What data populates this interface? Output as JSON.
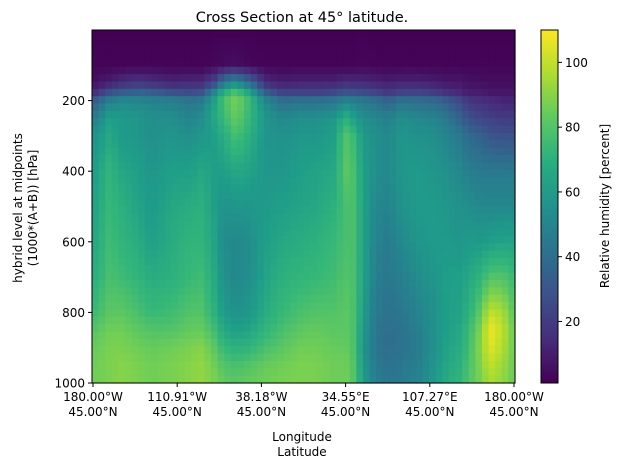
{
  "chart_data": {
    "type": "heatmap",
    "title": "Cross Section at 45° latitude.",
    "xlabel": [
      "Longitude",
      "Latitude"
    ],
    "ylabel": [
      "hybrid level at midpoints",
      "(1000*(A+B)) [hPa]"
    ],
    "colorbar_label": "Relative humidity [percent]",
    "colormap": "viridis",
    "clim": [
      1,
      110
    ],
    "ylim": [
      1000,
      0
    ],
    "y_inverted": true,
    "x_ticks": [
      {
        "lon": "180.00°W",
        "lat": "45.00°N"
      },
      {
        "lon": "110.91°W",
        "lat": "45.00°N"
      },
      {
        "lon": "38.18°W",
        "lat": "45.00°N"
      },
      {
        "lon": "34.55°E",
        "lat": "45.00°N"
      },
      {
        "lon": "107.27°E",
        "lat": "45.00°N"
      },
      {
        "lon": "180.00°W",
        "lat": "45.00°N"
      }
    ],
    "y_ticks": [
      200,
      400,
      600,
      800,
      1000
    ],
    "colorbar_ticks": [
      20,
      40,
      60,
      80,
      100
    ],
    "x_samples": [
      0,
      0.04,
      0.07,
      0.11,
      0.14,
      0.19,
      0.23,
      0.26,
      0.29,
      0.31,
      0.34,
      0.37,
      0.41,
      0.45,
      0.49,
      0.53,
      0.57,
      0.6,
      0.62,
      0.64,
      0.67,
      0.7,
      0.73,
      0.77,
      0.81,
      0.84,
      0.87,
      0.89,
      0.92,
      0.94,
      0.97,
      1
    ],
    "levels_hPa": [
      0,
      100,
      150,
      180,
      200,
      250,
      300,
      400,
      500,
      600,
      700,
      800,
      850,
      900,
      950,
      1000
    ],
    "values": [
      [
        1,
        1,
        1,
        1,
        1,
        1,
        1,
        1,
        1,
        1,
        1,
        1,
        1,
        1,
        1,
        1,
        1,
        1,
        1,
        1,
        1,
        1,
        1,
        1,
        1,
        1,
        1,
        1,
        1,
        1,
        1,
        1
      ],
      [
        2,
        2,
        2,
        2,
        2,
        2,
        2,
        2,
        3,
        4,
        5,
        3,
        2,
        2,
        2,
        2,
        2,
        2,
        2,
        3,
        2,
        2,
        2,
        2,
        2,
        2,
        2,
        2,
        2,
        2,
        2,
        2
      ],
      [
        5,
        10,
        15,
        18,
        16,
        12,
        14,
        14,
        25,
        45,
        55,
        40,
        15,
        10,
        12,
        12,
        12,
        15,
        14,
        14,
        12,
        10,
        12,
        12,
        10,
        8,
        8,
        6,
        6,
        5,
        5,
        5
      ],
      [
        15,
        30,
        35,
        38,
        36,
        30,
        28,
        30,
        55,
        70,
        82,
        68,
        35,
        24,
        24,
        24,
        26,
        32,
        30,
        28,
        25,
        20,
        25,
        25,
        22,
        18,
        14,
        10,
        10,
        8,
        8,
        8
      ],
      [
        30,
        48,
        52,
        52,
        50,
        48,
        44,
        46,
        64,
        78,
        88,
        76,
        52,
        40,
        42,
        42,
        44,
        50,
        48,
        45,
        42,
        35,
        42,
        40,
        38,
        32,
        25,
        18,
        16,
        14,
        12,
        12
      ],
      [
        46,
        62,
        60,
        58,
        55,
        55,
        50,
        55,
        66,
        74,
        84,
        74,
        58,
        52,
        55,
        55,
        58,
        70,
        62,
        55,
        52,
        48,
        55,
        52,
        50,
        44,
        35,
        28,
        24,
        22,
        20,
        20
      ],
      [
        55,
        66,
        60,
        58,
        55,
        58,
        55,
        58,
        62,
        68,
        78,
        70,
        58,
        56,
        58,
        58,
        62,
        80,
        74,
        60,
        55,
        52,
        58,
        56,
        55,
        50,
        45,
        38,
        35,
        30,
        28,
        28
      ],
      [
        60,
        72,
        66,
        62,
        58,
        62,
        62,
        66,
        62,
        62,
        66,
        64,
        58,
        58,
        62,
        64,
        66,
        82,
        78,
        62,
        55,
        52,
        58,
        60,
        58,
        55,
        52,
        48,
        45,
        45,
        45,
        45
      ],
      [
        62,
        74,
        70,
        64,
        60,
        66,
        68,
        70,
        62,
        56,
        58,
        58,
        60,
        62,
        64,
        66,
        70,
        78,
        78,
        64,
        52,
        50,
        56,
        60,
        60,
        58,
        56,
        55,
        52,
        52,
        52,
        52
      ],
      [
        64,
        76,
        72,
        68,
        62,
        68,
        72,
        72,
        64,
        54,
        52,
        54,
        62,
        66,
        68,
        70,
        74,
        78,
        78,
        64,
        50,
        46,
        52,
        58,
        60,
        60,
        58,
        60,
        60,
        62,
        64,
        64
      ],
      [
        68,
        78,
        76,
        72,
        68,
        70,
        74,
        76,
        66,
        56,
        52,
        54,
        64,
        70,
        72,
        74,
        76,
        80,
        78,
        64,
        48,
        44,
        48,
        54,
        58,
        62,
        62,
        66,
        72,
        80,
        80,
        74
      ],
      [
        74,
        82,
        82,
        78,
        74,
        76,
        80,
        80,
        70,
        60,
        56,
        58,
        68,
        74,
        78,
        80,
        80,
        82,
        78,
        62,
        46,
        42,
        44,
        50,
        56,
        62,
        64,
        70,
        84,
        100,
        96,
        80
      ],
      [
        80,
        86,
        86,
        82,
        80,
        80,
        84,
        84,
        76,
        66,
        62,
        64,
        72,
        78,
        82,
        84,
        82,
        82,
        78,
        60,
        44,
        40,
        42,
        48,
        56,
        62,
        66,
        74,
        90,
        108,
        100,
        84
      ],
      [
        84,
        88,
        88,
        86,
        84,
        86,
        88,
        90,
        82,
        74,
        70,
        72,
        78,
        82,
        86,
        86,
        84,
        84,
        78,
        58,
        44,
        40,
        42,
        46,
        56,
        64,
        68,
        76,
        92,
        105,
        98,
        84
      ],
      [
        86,
        88,
        90,
        88,
        86,
        88,
        90,
        92,
        86,
        80,
        78,
        80,
        84,
        86,
        88,
        88,
        86,
        86,
        80,
        60,
        46,
        42,
        44,
        48,
        58,
        66,
        70,
        78,
        90,
        100,
        94,
        84
      ],
      [
        86,
        88,
        90,
        88,
        86,
        88,
        90,
        92,
        88,
        84,
        82,
        84,
        86,
        88,
        88,
        88,
        86,
        86,
        80,
        62,
        48,
        44,
        46,
        50,
        60,
        68,
        72,
        80,
        88,
        96,
        92,
        84
      ]
    ]
  }
}
